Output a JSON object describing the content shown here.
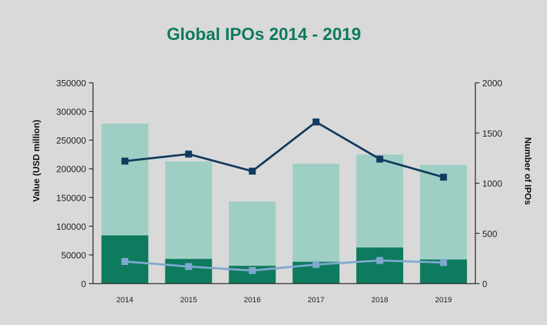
{
  "chart_data": {
    "type": "bar",
    "title": "Global IPOs 2014 - 2019",
    "categories": [
      "2014",
      "2015",
      "2016",
      "2017",
      "2018",
      "2019"
    ],
    "y_left": {
      "label": "Value (USD million)",
      "range": [
        0,
        350000
      ],
      "ticks": [
        0,
        50000,
        100000,
        150000,
        200000,
        250000,
        300000,
        350000
      ]
    },
    "y_right": {
      "label": "Number of IPOs",
      "range": [
        0,
        2000
      ],
      "ticks": [
        0,
        500,
        1000,
        1500,
        2000
      ]
    },
    "series": [
      {
        "kind": "bar",
        "axis": "left",
        "color": "#9fcfc4",
        "values": [
          279000,
          213000,
          143000,
          209000,
          225000,
          207000
        ]
      },
      {
        "kind": "bar",
        "axis": "left",
        "color": "#0e7a5e",
        "values": [
          84000,
          43000,
          31000,
          38000,
          63000,
          42000
        ]
      },
      {
        "kind": "line",
        "axis": "right",
        "color": "#123a5e",
        "values": [
          1220,
          1290,
          1120,
          1610,
          1240,
          1060
        ]
      },
      {
        "kind": "line",
        "axis": "right",
        "color": "#7fa8d0",
        "values": [
          220,
          170,
          130,
          190,
          230,
          210
        ]
      }
    ],
    "grid": false,
    "legend": "none"
  }
}
